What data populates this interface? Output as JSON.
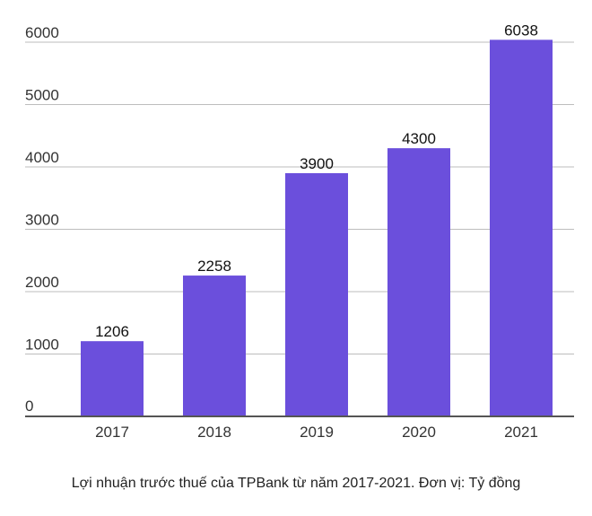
{
  "caption": "Lợi nhuận trước thuế của TPBank từ năm 2017-2021. Đơn vị: Tỷ đồng",
  "colors": {
    "bar": "#6b4fdc",
    "grid": "#bdbdbd",
    "axis": "#555555"
  },
  "chart_data": {
    "type": "bar",
    "title": "",
    "xlabel": "",
    "ylabel": "",
    "categories": [
      "2017",
      "2018",
      "2019",
      "2020",
      "2021"
    ],
    "values": [
      1206,
      2258,
      3900,
      4300,
      6038
    ],
    "data_labels": [
      "1206",
      "2258",
      "3900",
      "4300",
      "6038"
    ],
    "y_ticks": [
      0,
      1000,
      2000,
      3000,
      4000,
      5000,
      6000
    ],
    "y_tick_labels": [
      "0",
      "1000",
      "2000",
      "3000",
      "4000",
      "5000",
      "6000"
    ],
    "ylim": [
      0,
      6000
    ],
    "grid": true,
    "legend": "none"
  }
}
